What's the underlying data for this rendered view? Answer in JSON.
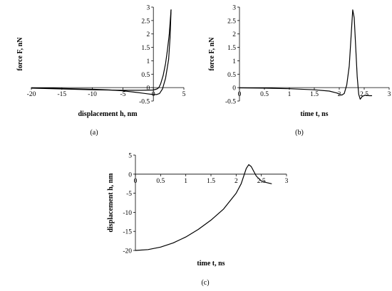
{
  "chart_data": [
    {
      "id": "a",
      "type": "line",
      "panel_label": "(a)",
      "xlabel": "displacement h, nm",
      "ylabel": "force F, nN",
      "xlim": [
        -20,
        5
      ],
      "ylim": [
        -0.5,
        3
      ],
      "xticks": [
        -20,
        -15,
        -10,
        -5,
        0,
        5
      ],
      "yticks": [
        -0.5,
        0,
        0.5,
        1,
        1.5,
        2,
        2.5,
        3
      ],
      "series": [
        {
          "values": [
            [
              -20,
              -0.01
            ],
            [
              -15,
              -0.03
            ],
            [
              -10,
              -0.06
            ],
            [
              -7,
              -0.09
            ],
            [
              -5,
              -0.12
            ],
            [
              -3,
              -0.17
            ],
            [
              -2,
              -0.2
            ],
            [
              -1,
              -0.23
            ],
            [
              0,
              -0.26
            ],
            [
              0.5,
              -0.26
            ],
            [
              1,
              -0.22
            ],
            [
              1.5,
              -0.05
            ],
            [
              2,
              0.35
            ],
            [
              2.5,
              1.05
            ],
            [
              2.75,
              1.9
            ],
            [
              2.9,
              2.9
            ]
          ]
        },
        {
          "values": [
            [
              2.9,
              2.9
            ],
            [
              2.6,
              2.0
            ],
            [
              2.3,
              1.4
            ],
            [
              2,
              0.9
            ],
            [
              1.6,
              0.45
            ],
            [
              1.2,
              0.15
            ],
            [
              0.9,
              0
            ],
            [
              0.6,
              -0.05
            ],
            [
              0,
              -0.09
            ],
            [
              -2,
              -0.1
            ],
            [
              -5,
              -0.1
            ],
            [
              -10,
              -0.08
            ],
            [
              -15,
              -0.05
            ],
            [
              -20,
              -0.02
            ]
          ]
        }
      ]
    },
    {
      "id": "b",
      "type": "line",
      "panel_label": "(b)",
      "xlabel": "time t, ns",
      "ylabel": "force F, nN",
      "xlim": [
        0,
        3
      ],
      "ylim": [
        -0.5,
        3
      ],
      "xticks": [
        0,
        0.5,
        1,
        1.5,
        2,
        2.5,
        3
      ],
      "yticks": [
        -0.5,
        0,
        0.5,
        1,
        1.5,
        2,
        2.5,
        3
      ],
      "series": [
        {
          "values": [
            [
              0,
              -0.01
            ],
            [
              0.5,
              -0.02
            ],
            [
              1,
              -0.04
            ],
            [
              1.5,
              -0.08
            ],
            [
              1.8,
              -0.13
            ],
            [
              1.95,
              -0.2
            ],
            [
              2.05,
              -0.28
            ],
            [
              2.1,
              -0.22
            ],
            [
              2.15,
              0.1
            ],
            [
              2.2,
              0.8
            ],
            [
              2.24,
              2.0
            ],
            [
              2.27,
              2.9
            ],
            [
              2.3,
              2.6
            ],
            [
              2.33,
              1.5
            ],
            [
              2.36,
              0.4
            ],
            [
              2.39,
              -0.25
            ],
            [
              2.42,
              -0.43
            ],
            [
              2.46,
              -0.33
            ],
            [
              2.52,
              -0.28
            ],
            [
              2.6,
              -0.3
            ],
            [
              2.65,
              -0.3
            ]
          ]
        }
      ]
    },
    {
      "id": "c",
      "type": "line",
      "panel_label": "(c)",
      "xlabel": "time t, ns",
      "ylabel": "displacement h, nm",
      "xlim": [
        0,
        3
      ],
      "ylim": [
        -20,
        5
      ],
      "xticks": [
        0,
        0.5,
        1,
        1.5,
        2,
        2.5,
        3
      ],
      "yticks": [
        -20,
        -15,
        -10,
        -5,
        0,
        5
      ],
      "series": [
        {
          "values": [
            [
              0,
              -20
            ],
            [
              0.25,
              -19.78
            ],
            [
              0.5,
              -19.12
            ],
            [
              0.75,
              -18.02
            ],
            [
              1,
              -16.47
            ],
            [
              1.25,
              -14.48
            ],
            [
              1.5,
              -12.05
            ],
            [
              1.75,
              -9.14
            ],
            [
              2,
              -5.0
            ],
            [
              2.1,
              -2.5
            ],
            [
              2.2,
              1.5
            ],
            [
              2.25,
              2.5
            ],
            [
              2.3,
              2.0
            ],
            [
              2.4,
              -0.5
            ],
            [
              2.5,
              -1.8
            ],
            [
              2.6,
              -2.2
            ],
            [
              2.7,
              -2.5
            ]
          ]
        }
      ]
    }
  ]
}
